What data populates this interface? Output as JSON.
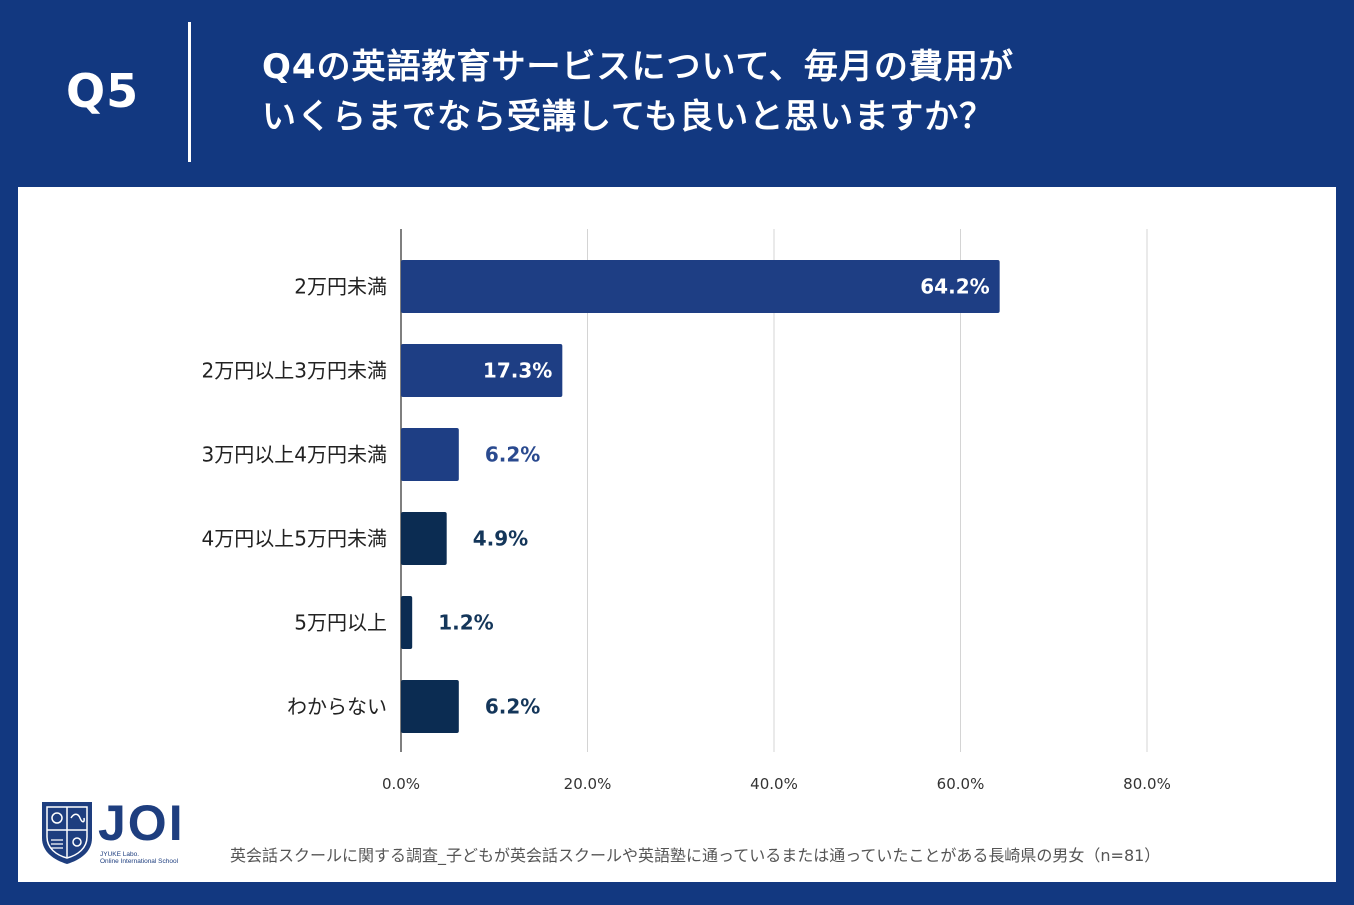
{
  "header": {
    "question_no": "Q5",
    "title_line1": "Q4の英語教育サービスについて、毎月の費用が",
    "title_line2": "いくらまでなら受講しても良いと思いますか？"
  },
  "colors": {
    "background": "#123880",
    "bar_dark_blue": "#1e3e84",
    "bar_navy": "#0b2c52",
    "label_on_bar": "#ffffff",
    "label_off_bar_blue": "#2a4a8f",
    "label_off_bar_navy": "#14365a"
  },
  "chart_data": {
    "type": "bar",
    "orientation": "horizontal",
    "categories": [
      "2万円未満",
      "2万円以上3万円未満",
      "3万円以上4万円未満",
      "4万円以上5万円未満",
      "5万円以上",
      "わからない"
    ],
    "values": [
      64.2,
      17.3,
      6.2,
      4.9,
      1.2,
      6.2
    ],
    "value_labels": [
      "64.2%",
      "17.3%",
      "6.2%",
      "4.9%",
      "1.2%",
      "6.2%"
    ],
    "bar_color_keys": [
      "bar_dark_blue",
      "bar_dark_blue",
      "bar_dark_blue",
      "bar_navy",
      "bar_navy",
      "bar_navy"
    ],
    "xlim": [
      0,
      80
    ],
    "xticks": [
      0,
      20,
      40,
      60,
      80
    ],
    "xtick_labels": [
      "0.0%",
      "20.0%",
      "40.0%",
      "60.0%",
      "80.0%"
    ],
    "grid": true,
    "legend": "none"
  },
  "footer": {
    "note": "英会話スクールに関する調査_子どもが英会話スクールや英語塾に通っているまたは通っていたことがある長崎県の男女（n=81）",
    "logo_text": "JOI",
    "logo_sub_line1": "JYUKE Labo.",
    "logo_sub_line2": "Online International School"
  }
}
